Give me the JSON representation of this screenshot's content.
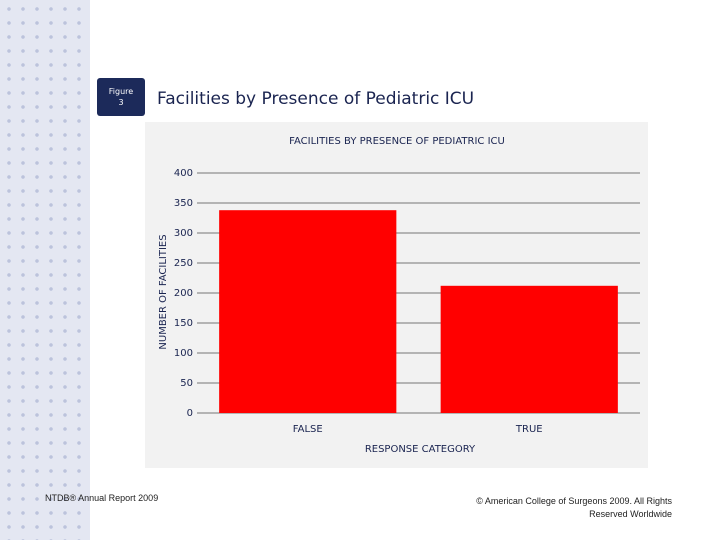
{
  "slide": {
    "figure_label": "Figure 3",
    "title": "Facilities by Presence of Pediatric ICU",
    "footer_left": "NTDB® Annual Report 2009",
    "footer_right": "© American College of Surgeons 2009.  All Rights Reserved Worldwide"
  },
  "chart_data": {
    "type": "bar",
    "title": "FACILITIES BY PRESENCE OF PEDIATRIC ICU",
    "x_label": "RESPONSE CATEGORY",
    "y_label": "NUMBER OF FACILITIES",
    "categories": [
      "FALSE",
      "TRUE"
    ],
    "values": [
      338,
      212
    ],
    "color": "#ff0000",
    "ylim": [
      0,
      400
    ],
    "yticks": [
      0,
      50,
      100,
      150,
      200,
      250,
      300,
      350,
      400
    ],
    "grid": true
  }
}
